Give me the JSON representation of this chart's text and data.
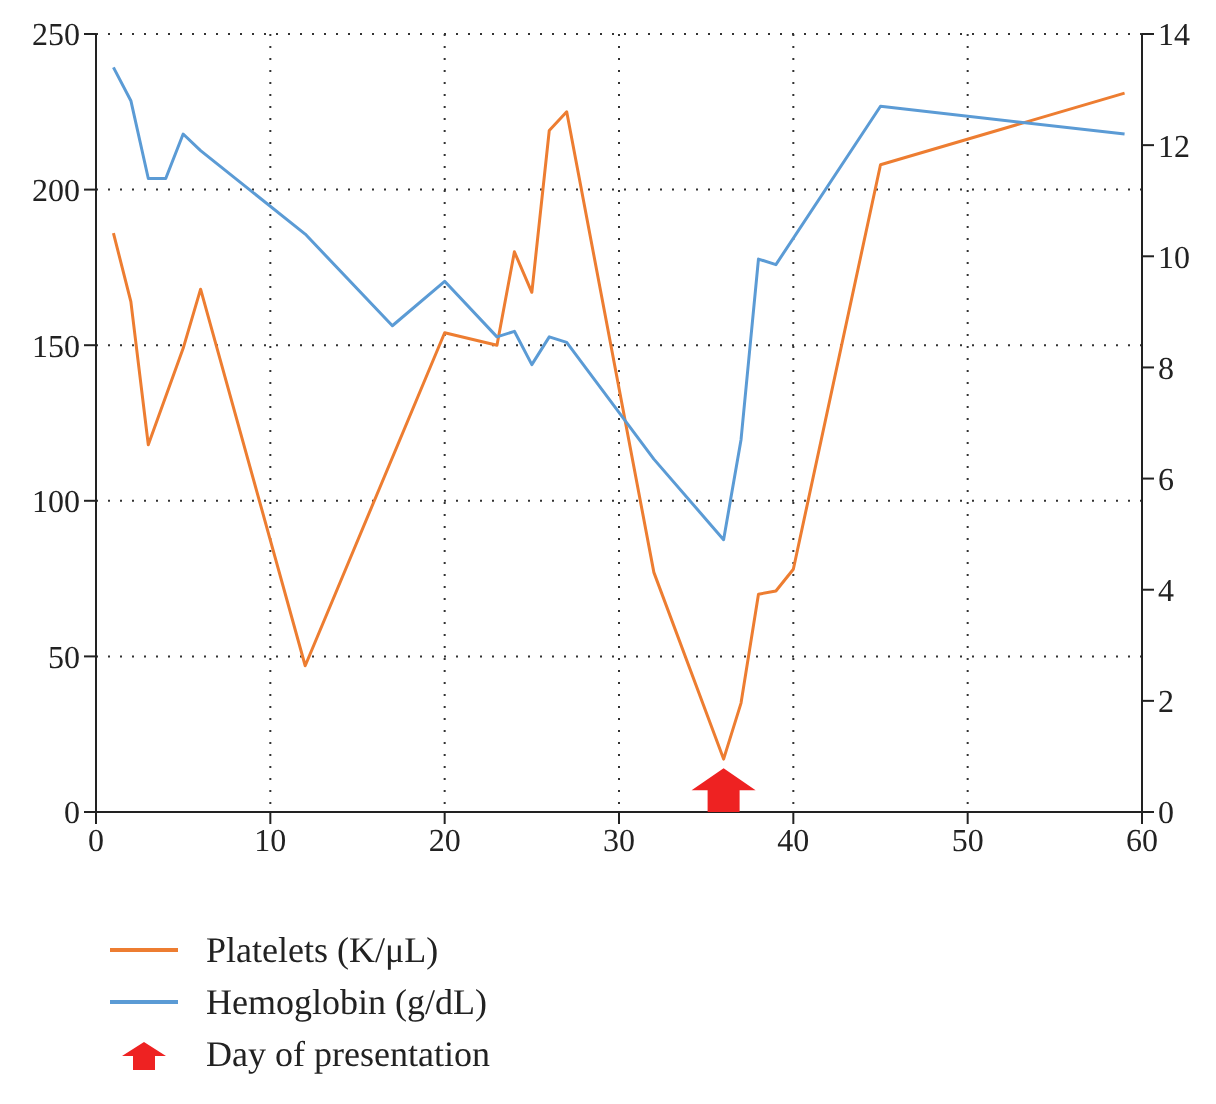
{
  "chart_data": {
    "type": "line",
    "xlim": [
      0,
      60
    ],
    "xticks": [
      0,
      10,
      20,
      30,
      40,
      50,
      60
    ],
    "ylim": [
      0,
      250
    ],
    "yticks": [
      0,
      50,
      100,
      150,
      200,
      250
    ],
    "y2lim": [
      0,
      14
    ],
    "y2ticks": [
      0,
      2,
      4,
      6,
      8,
      10,
      12,
      14
    ],
    "grid": true,
    "legend": "bottom",
    "marker": "none",
    "line_style": "solid",
    "series": [
      {
        "name": "Platelets (K/μL)",
        "color": "#ed7d31",
        "x": [
          1,
          2,
          3,
          5,
          6,
          12,
          20,
          23,
          24,
          25,
          26,
          27,
          32,
          36,
          37,
          38,
          39,
          40,
          45,
          59
        ],
        "values": [
          186,
          164,
          118,
          149,
          168,
          47,
          154,
          150,
          180,
          167,
          219,
          225,
          77,
          17,
          35,
          70,
          71,
          78,
          208,
          231
        ]
      },
      {
        "name": "Hemoglobin (g/dL)",
        "color": "#5b9bd5",
        "axis": "y2",
        "x": [
          1,
          2,
          3,
          4,
          5,
          6,
          12,
          17,
          20,
          23,
          24,
          25,
          26,
          27,
          32,
          36,
          37,
          38,
          39,
          45,
          59
        ],
        "values": [
          13.4,
          12.8,
          11.4,
          11.4,
          12.2,
          11.9,
          10.4,
          8.75,
          9.55,
          8.55,
          8.65,
          8.05,
          8.55,
          8.45,
          6.35,
          4.9,
          6.7,
          9.95,
          9.85,
          12.7,
          12.2
        ]
      },
      {
        "name": "Day of presentation",
        "type": "scatter",
        "color": "#ee2222",
        "x": [
          36
        ],
        "values": [
          7
        ]
      }
    ]
  }
}
